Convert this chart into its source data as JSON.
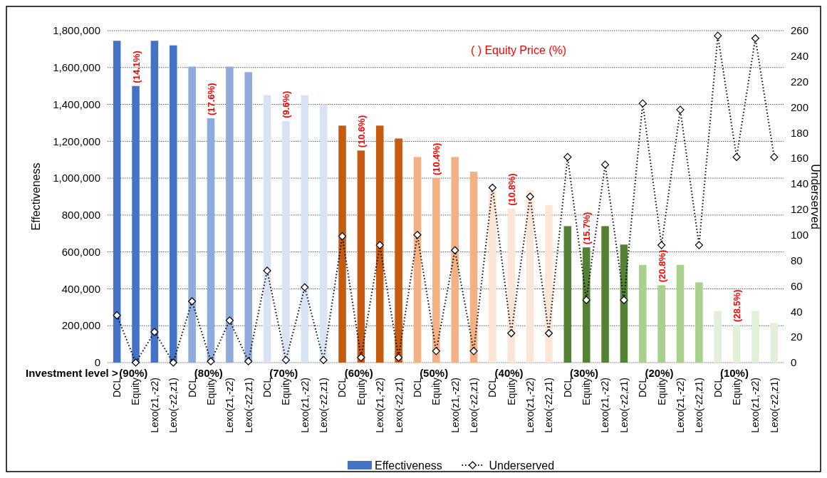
{
  "chart_data": {
    "type": "bar",
    "ylabel": "Effectiveness",
    "y2label": "Underserved",
    "categories": [
      "DCL",
      "Equity",
      "Lexo(z1,-z2)",
      "Lexo(-z2,z1)",
      "DCL",
      "Equity",
      "Lexo(z1,-z2)",
      "Lexo(-z2,z1)",
      "DCL",
      "Equity",
      "Lexo(z1,-z2)",
      "Lexo(-z2,z1)",
      "DCL",
      "Equity",
      "Lexo(z1,-z2)",
      "Lexo(-z2,z1)",
      "DCL",
      "Equity",
      "Lexo(z1,-z2)",
      "Lexo(-z2,z1)",
      "DCL",
      "Equity",
      "Lexo(z1,-z2)",
      "Lexo(-z2,z1)",
      "DCL",
      "Equity",
      "Lexo(z1,-z2)",
      "Lexo(-z2,z1)",
      "DCL",
      "Equity",
      "Lexo(z1,-z2)",
      "Lexo(-z2,z1)",
      "DCL",
      "Equity",
      "Lexo(z1,-z2)",
      "Lexo(-z2,z1)"
    ],
    "series": [
      {
        "name": "Effectiveness",
        "type": "bar",
        "color": "#4472c4",
        "colors": [
          "#4472c4",
          "#4472c4",
          "#4472c4",
          "#4472c4",
          "#8faadc",
          "#8faadc",
          "#8faadc",
          "#8faadc",
          "#dae3f3",
          "#dae3f3",
          "#dae3f3",
          "#dae3f3",
          "#c55a11",
          "#c55a11",
          "#c55a11",
          "#c55a11",
          "#f4b183",
          "#f4b183",
          "#f4b183",
          "#f4b183",
          "#fbe5d6",
          "#fbe5d6",
          "#fbe5d6",
          "#fbe5d6",
          "#548235",
          "#548235",
          "#548235",
          "#548235",
          "#a9d18e",
          "#a9d18e",
          "#a9d18e",
          "#a9d18e",
          "#e2f0d9",
          "#e2f0d9",
          "#e2f0d9",
          "#e2f0d9"
        ],
        "values": [
          1745000,
          1500000,
          1745000,
          1720000,
          1605000,
          1325000,
          1605000,
          1575000,
          1450000,
          1310000,
          1450000,
          1400000,
          1285000,
          1150000,
          1285000,
          1215000,
          1115000,
          1000000,
          1115000,
          1035000,
          935000,
          835000,
          935000,
          855000,
          740000,
          625000,
          740000,
          640000,
          530000,
          420000,
          530000,
          435000,
          280000,
          205000,
          280000,
          215000
        ]
      },
      {
        "name": "Underserved",
        "type": "line",
        "axis": "y2",
        "color": "#000000",
        "marker": "diamond",
        "line_style": "dotted",
        "values": [
          37,
          0,
          24,
          0,
          48,
          1,
          33,
          1,
          72,
          2,
          59,
          2,
          99,
          4,
          92,
          4,
          100,
          9,
          88,
          9,
          137,
          23,
          130,
          23,
          161,
          49,
          155,
          49,
          203,
          92,
          198,
          92,
          256,
          161,
          254,
          161
        ]
      }
    ],
    "ylim": [
      0,
      1800000
    ],
    "yticks": [
      {
        "value": 0,
        "label": "0"
      },
      {
        "value": 200000,
        "label": "200,000"
      },
      {
        "value": 400000,
        "label": "400,000"
      },
      {
        "value": 600000,
        "label": "600,000"
      },
      {
        "value": 800000,
        "label": "800,000"
      },
      {
        "value": 1000000,
        "label": "1,000,000"
      },
      {
        "value": 1200000,
        "label": "1,200,000"
      },
      {
        "value": 1400000,
        "label": "1,400,000"
      },
      {
        "value": 1600000,
        "label": "1,600,000"
      },
      {
        "value": 1800000,
        "label": "1,800,000"
      }
    ],
    "y2lim": [
      0,
      260
    ],
    "y2ticks": [
      0,
      20,
      40,
      60,
      80,
      100,
      120,
      140,
      160,
      180,
      200,
      220,
      240,
      260
    ],
    "grid": "y",
    "legend": "bottom",
    "annotations": [
      "( ) Equity Price (%)",
      "Investment level >",
      "(90%)",
      "(80%)",
      "(70%)",
      "(60%)",
      "(50%)",
      "(40%)",
      "(30%)",
      "(20%)",
      "(10%)",
      "(14.1%)",
      "(17.6%)",
      "(9.6%)",
      "(10.6%)",
      "(10.4%)",
      "(10.8%)",
      "(15.7%)",
      "(20.8%)",
      "(28.5%)"
    ]
  }
}
